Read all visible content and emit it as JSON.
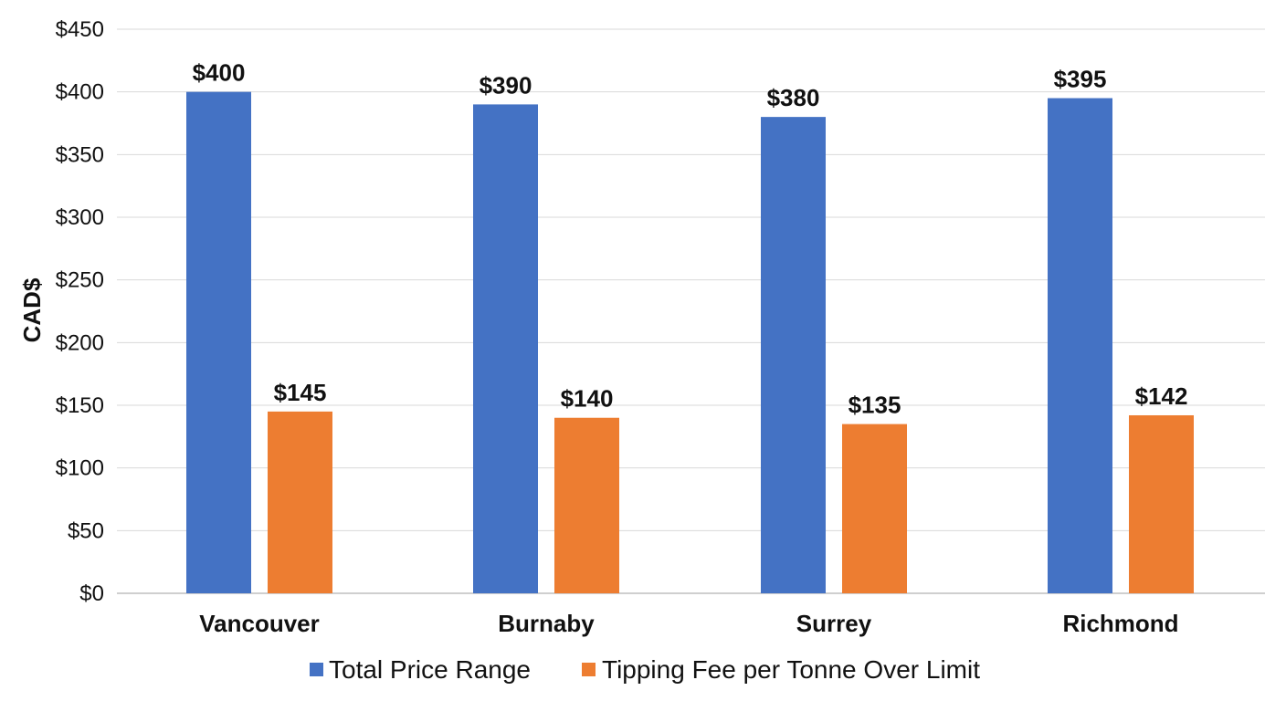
{
  "chart_data": {
    "type": "bar",
    "title": "",
    "xlabel": "",
    "ylabel": "CAD$",
    "ylim": [
      0,
      450
    ],
    "yticks": [
      0,
      50,
      100,
      150,
      200,
      250,
      300,
      350,
      400,
      450
    ],
    "ytick_labels": [
      "$0",
      "$50",
      "$100",
      "$150",
      "$200",
      "$250",
      "$300",
      "$350",
      "$400",
      "$450"
    ],
    "grid": "horizontal",
    "legend_position": "bottom",
    "categories": [
      "Vancouver",
      "Burnaby",
      "Surrey",
      "Richmond"
    ],
    "series": [
      {
        "name": "Total Price Range",
        "color": "#4472C4",
        "values": [
          400,
          390,
          380,
          395
        ],
        "labels": [
          "$400",
          "$390",
          "$380",
          "$395"
        ]
      },
      {
        "name": "Tipping Fee per Tonne Over Limit",
        "color": "#ED7D31",
        "values": [
          145,
          140,
          135,
          142
        ],
        "labels": [
          "$145",
          "$140",
          "$135",
          "$142"
        ]
      }
    ]
  }
}
